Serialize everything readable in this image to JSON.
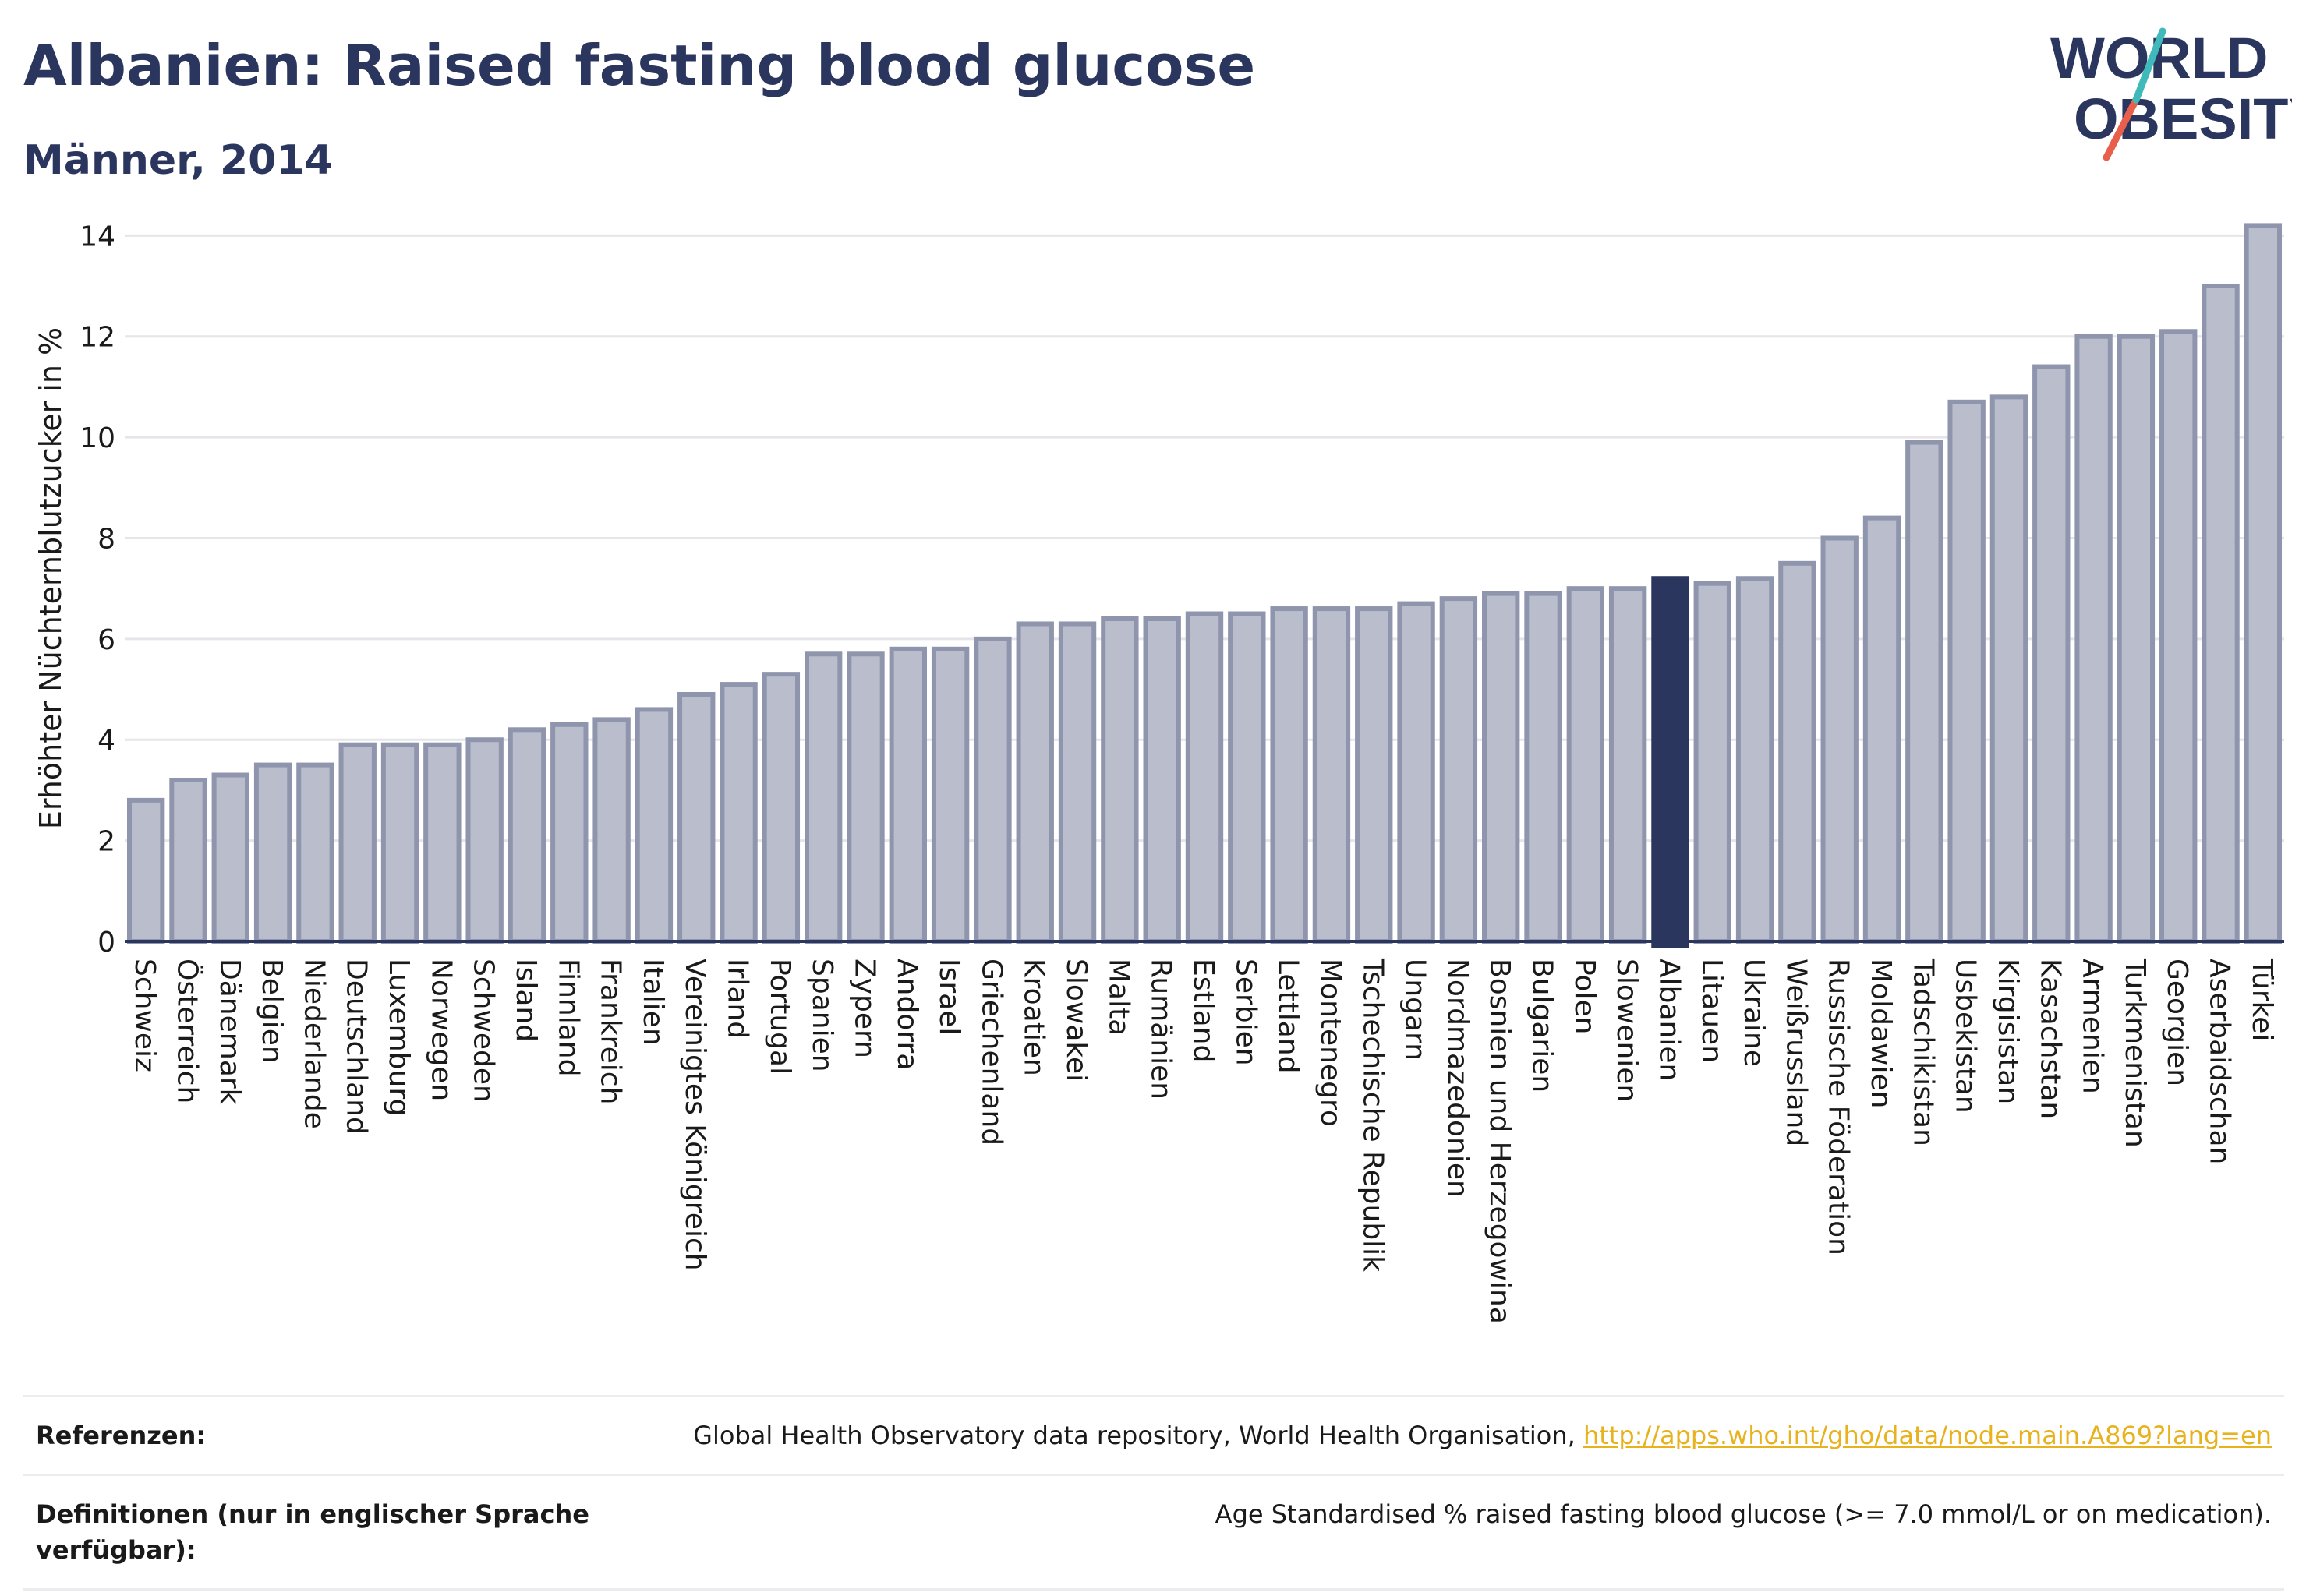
{
  "header": {
    "title": "Albanien: Raised fasting blood glucose",
    "subtitle": "Männer, 2014"
  },
  "logo": {
    "line1": "WORLD",
    "line2": "OBESITY"
  },
  "colors": {
    "bar": "#b9bdcc",
    "bar_border": "#8f95ad",
    "highlight": "#2b365e",
    "text": "#2b365e",
    "grid": "#e6e6ea",
    "logo_teal": "#3fb9b9",
    "logo_red": "#e8604c"
  },
  "chart_data": {
    "type": "bar",
    "ylabel": "Erhöhter Nüchternblutzucker in %",
    "ylim": [
      0,
      14.5
    ],
    "yticks": [
      0,
      2,
      4,
      6,
      8,
      10,
      12,
      14
    ],
    "highlight": "Albanien",
    "categories": [
      "Schweiz",
      "Österreich",
      "Dänemark",
      "Belgien",
      "Niederlande",
      "Deutschland",
      "Luxemburg",
      "Norwegen",
      "Schweden",
      "Island",
      "Finnland",
      "Frankreich",
      "Italien",
      "Vereinigtes Königreich",
      "Irland",
      "Portugal",
      "Spanien",
      "Zypern",
      "Andorra",
      "Israel",
      "Griechenland",
      "Kroatien",
      "Slowakei",
      "Malta",
      "Rumänien",
      "Estland",
      "Serbien",
      "Lettland",
      "Montenegro",
      "Tschechische Republik",
      "Ungarn",
      "Nordmazedonien",
      "Bosnien und Herzegowina",
      "Bulgarien",
      "Polen",
      "Slowenien",
      "Albanien",
      "Litauen",
      "Ukraine",
      "Weißrussland",
      "Russische Föderation",
      "Moldawien",
      "Tadschikistan",
      "Usbekistan",
      "Kirgisistan",
      "Kasachstan",
      "Armenien",
      "Turkmenistan",
      "Georgien",
      "Aserbaidschan",
      "Türkei"
    ],
    "values": [
      2.8,
      3.2,
      3.3,
      3.5,
      3.5,
      3.9,
      3.9,
      3.9,
      4.0,
      4.2,
      4.3,
      4.4,
      4.6,
      4.9,
      5.1,
      5.3,
      5.7,
      5.7,
      5.8,
      5.8,
      6.0,
      6.3,
      6.3,
      6.4,
      6.4,
      6.5,
      6.5,
      6.6,
      6.6,
      6.6,
      6.7,
      6.8,
      6.9,
      6.9,
      7.0,
      7.0,
      7.2,
      7.1,
      7.2,
      7.5,
      8.0,
      8.4,
      9.9,
      10.7,
      10.8,
      11.4,
      12.0,
      12.0,
      12.1,
      13.0,
      14.2
    ]
  },
  "footer": {
    "references_label": "Referenzen:",
    "references_text": "Global Health Observatory data repository, World Health Organisation, ",
    "references_link": "http://apps.who.int/gho/data/node.main.A869?lang=en",
    "definitions_label": "Definitionen (nur in englischer Sprache verfügbar):",
    "definitions_text": "Age Standardised % raised fasting blood glucose (>= 7.0 mmol/L or on medication)."
  }
}
